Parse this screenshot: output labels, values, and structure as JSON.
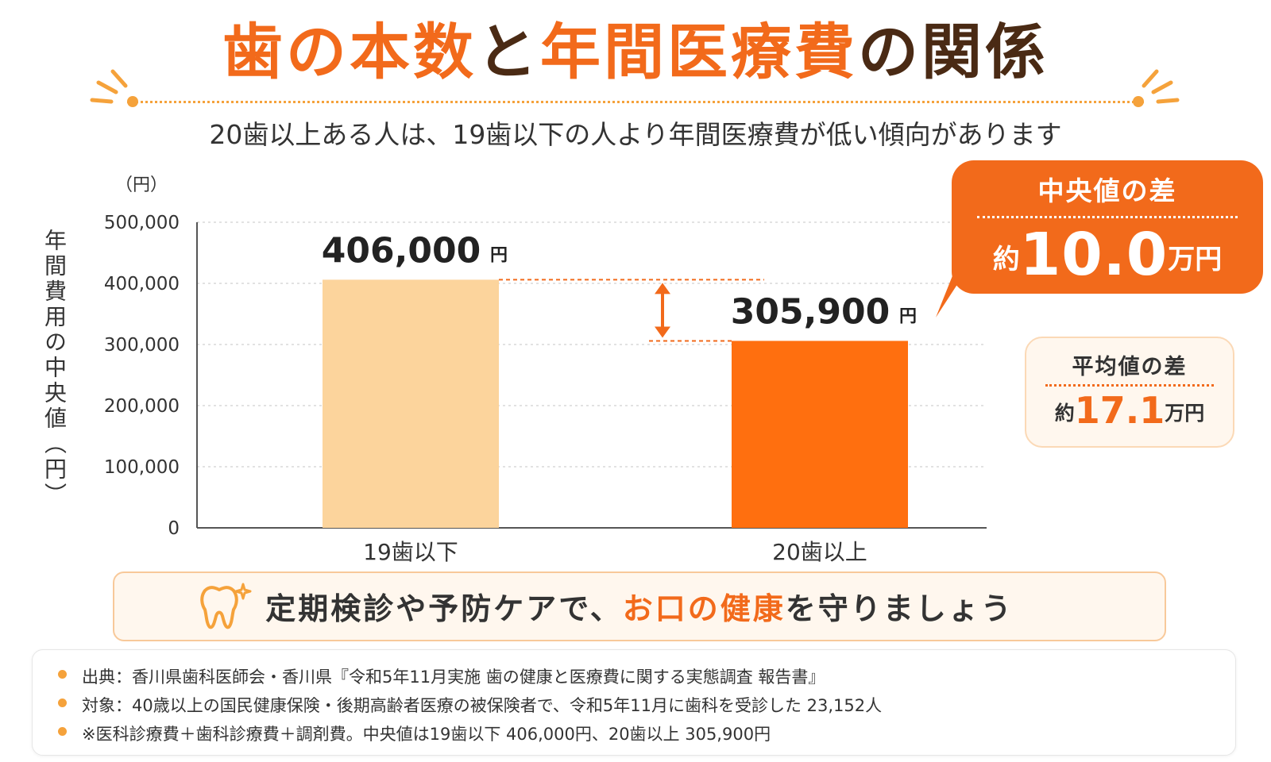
{
  "title": {
    "p1": "歯の本数",
    "p2": "と",
    "p3": "年間医療費",
    "p4": "の関係"
  },
  "subtitle": "20歯以上ある人は、19歯以下の人より年間医療費が低い傾向があります",
  "chart_data": {
    "type": "bar",
    "categories": [
      "19歯以下",
      "20歯以上"
    ],
    "values": [
      406000,
      305900
    ],
    "value_labels": [
      "406,000",
      "305,900"
    ],
    "value_unit": "円",
    "ylabel": "年間費用の中央値（円）",
    "yunit_label": "（円）",
    "ylim": [
      0,
      500000
    ],
    "yticks": [
      0,
      100000,
      200000,
      300000,
      400000,
      500000
    ],
    "ytick_labels": [
      "0",
      "100,000",
      "200,000",
      "300,000",
      "400,000",
      "500,000"
    ],
    "grid": true,
    "colors": [
      "#fcd49c",
      "#ff6f0f"
    ]
  },
  "callout_main": {
    "title": "中央値の差",
    "prefix": "約",
    "value": "10.0",
    "unit": "万円",
    "color": "#f26a1b"
  },
  "callout_sub": {
    "title": "平均値の差",
    "prefix": "約",
    "value": "17.1",
    "unit": "万円"
  },
  "banner": {
    "text_pre": "定期検診や予防ケアで、",
    "text_highlight": "お口の健康",
    "text_post": "を守りましょう",
    "icon": "tooth-icon"
  },
  "notes": [
    "出典：香川県歯科医師会・香川県『令和5年11月実施 歯の健康と医療費に関する実態調査 報告書』",
    "対象：40歳以上の国民健康保険・後期高齢者医療の被保険者で、令和5年11月に歯科を受診した 23,152人",
    "※医科診療費＋歯科診療費＋調剤費。中央値は19歯以下 406,000円、20歯以上 305,900円"
  ],
  "colors": {
    "accent": "#f26a1b",
    "dark_brown": "#4a2a14",
    "light_orange": "#fcd49c",
    "dot_orange": "#f5a23b"
  }
}
